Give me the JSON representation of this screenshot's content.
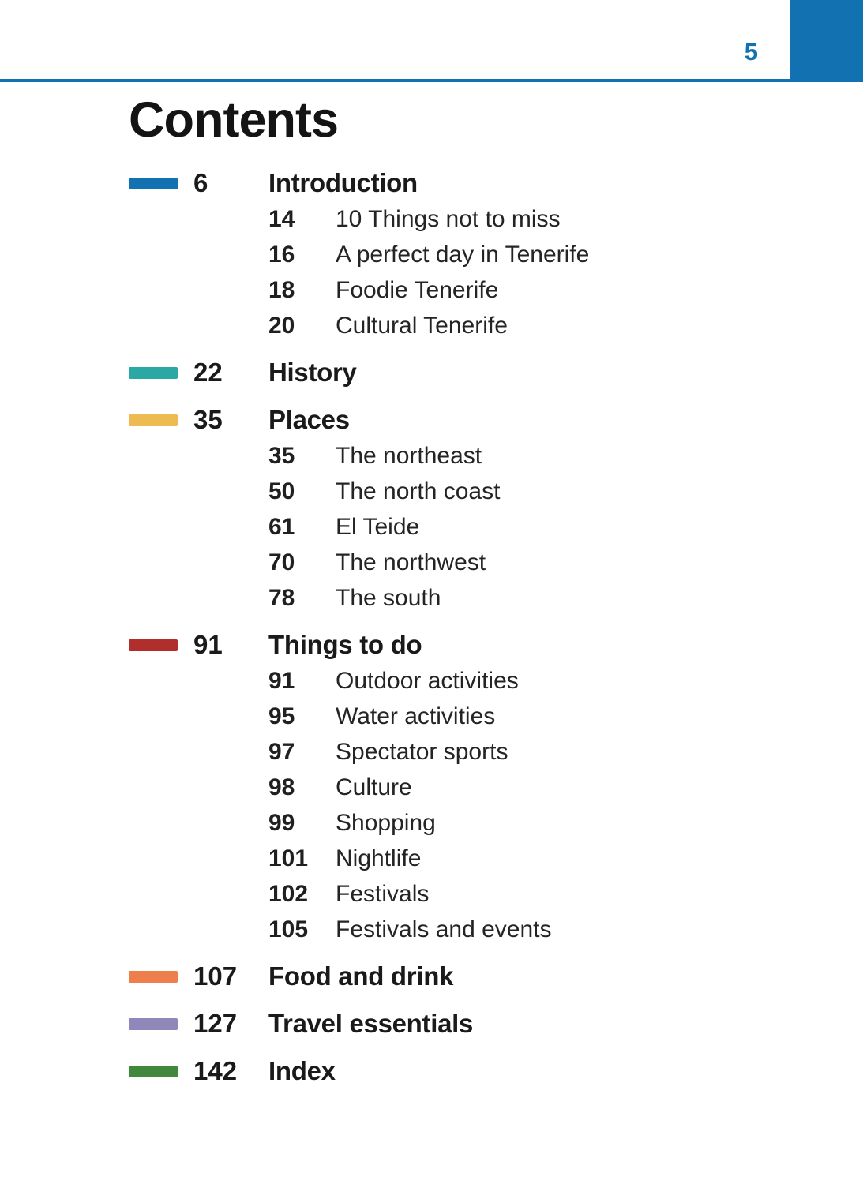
{
  "accent_color": "#1272b1",
  "header": {
    "page_number": "5"
  },
  "title": "Contents",
  "toc": [
    {
      "color": "#1272b1",
      "page": "6",
      "title": "Introduction",
      "subitems": [
        {
          "page": "14",
          "title": "10 Things not to miss"
        },
        {
          "page": "16",
          "title": "A perfect day in Tenerife"
        },
        {
          "page": "18",
          "title": "Foodie Tenerife"
        },
        {
          "page": "20",
          "title": "Cultural Tenerife"
        }
      ]
    },
    {
      "color": "#2ba7a4",
      "page": "22",
      "title": "History",
      "subitems": []
    },
    {
      "color": "#edbb51",
      "page": "35",
      "title": "Places",
      "subitems": [
        {
          "page": "35",
          "title": "The northeast"
        },
        {
          "page": "50",
          "title": "The north coast"
        },
        {
          "page": "61",
          "title": "El Teide"
        },
        {
          "page": "70",
          "title": "The northwest"
        },
        {
          "page": "78",
          "title": "The south"
        }
      ]
    },
    {
      "color": "#b02f2c",
      "page": "91",
      "title": "Things to do",
      "subitems": [
        {
          "page": "91",
          "title": "Outdoor activities"
        },
        {
          "page": "95",
          "title": "Water activities"
        },
        {
          "page": "97",
          "title": "Spectator sports"
        },
        {
          "page": "98",
          "title": "Culture"
        },
        {
          "page": "99",
          "title": "Shopping"
        },
        {
          "page": "101",
          "title": "Nightlife"
        },
        {
          "page": "102",
          "title": "Festivals"
        },
        {
          "page": "105",
          "title": "Festivals and events"
        }
      ]
    },
    {
      "color": "#ee7e4b",
      "page": "107",
      "title": "Food and drink",
      "subitems": []
    },
    {
      "color": "#9287bb",
      "page": "127",
      "title": "Travel essentials",
      "subitems": []
    },
    {
      "color": "#41883d",
      "page": "142",
      "title": "Index",
      "subitems": []
    }
  ]
}
